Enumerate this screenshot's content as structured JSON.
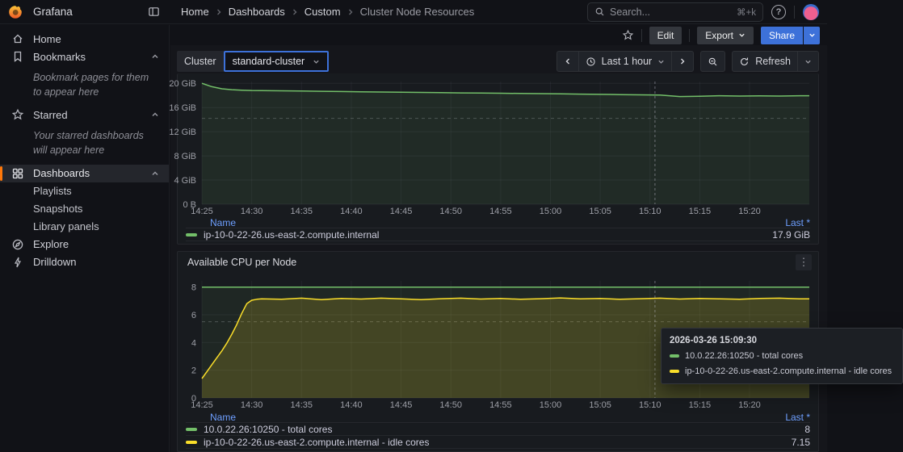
{
  "colors": {
    "accent_blue": "#3d71d9",
    "link_blue": "#6e9fff",
    "series_green": "#73bf69",
    "series_yellow": "#fade2a",
    "brand_orange": "#ff780a"
  },
  "icons": {
    "help_glyph": "?",
    "kebab_glyph": "⋮"
  },
  "topnav": {
    "brand": "Grafana",
    "breadcrumbs": [
      "Home",
      "Dashboards",
      "Custom",
      "Cluster Node Resources"
    ],
    "search": {
      "placeholder": "Search...",
      "shortcut": "⌘+k"
    }
  },
  "sidebar": {
    "items": [
      {
        "label": "Home"
      },
      {
        "label": "Bookmarks",
        "hint": "Bookmark pages for them to appear here"
      },
      {
        "label": "Starred",
        "hint": "Your starred dashboards will appear here"
      },
      {
        "label": "Dashboards",
        "children": [
          "Playlists",
          "Snapshots",
          "Library panels"
        ]
      },
      {
        "label": "Explore"
      },
      {
        "label": "Drilldown"
      }
    ]
  },
  "actions": {
    "edit": "Edit",
    "export": "Export",
    "share": "Share"
  },
  "controls": {
    "cluster_label": "Cluster",
    "cluster_value": "standard-cluster",
    "time_range": "Last 1 hour",
    "refresh": "Refresh"
  },
  "panels": [
    {
      "title": "",
      "legend": {
        "name_header": "Name",
        "value_header": "Last *",
        "rows": [
          {
            "name": "ip-10-0-22-26.us-east-2.compute.internal",
            "color": "#73bf69",
            "value": "17.9 GiB"
          }
        ]
      }
    },
    {
      "title": "Available CPU per Node",
      "legend": {
        "name_header": "Name",
        "value_header": "Last *",
        "rows": [
          {
            "name": "10.0.22.26:10250 - total cores",
            "color": "#73bf69",
            "value": "8"
          },
          {
            "name": "ip-10-0-22-26.us-east-2.compute.internal - idle cores",
            "color": "#fade2a",
            "value": "7.15"
          }
        ]
      }
    }
  ],
  "tooltip": {
    "timestamp": "2026-03-26 15:09:30",
    "series": [
      {
        "label": "10.0.22.26:10250 - total cores",
        "color": "#73bf69"
      },
      {
        "label": "ip-10-0-22-26.us-east-2.compute.internal - idle cores",
        "color": "#fade2a"
      }
    ]
  },
  "chart_data": [
    {
      "type": "line",
      "unit": "GiB",
      "x_ticks": [
        "14:25",
        "14:30",
        "14:35",
        "14:40",
        "14:45",
        "14:50",
        "14:55",
        "15:00",
        "15:05",
        "15:10",
        "15:15",
        "15:20"
      ],
      "x_tick_minutes": [
        0,
        5,
        10,
        15,
        20,
        25,
        30,
        35,
        40,
        45,
        50,
        55
      ],
      "x_max": 61,
      "ylim": [
        0,
        20.3
      ],
      "y_ticks": [
        "0 B",
        "4 GiB",
        "8 GiB",
        "12 GiB",
        "16 GiB",
        "20 GiB"
      ],
      "y_tick_values": [
        0,
        4,
        8,
        12,
        16,
        20
      ],
      "threshold": 14.2,
      "crosshair_minute": 45.5,
      "series": [
        {
          "name": "ip-10-0-22-26.us-east-2.compute.internal",
          "color": "#73bf69",
          "fill_opacity": 0.1,
          "last": "17.9 GiB",
          "x": [
            0,
            1,
            2,
            3,
            4,
            5,
            6,
            7,
            8,
            10,
            12,
            14,
            16,
            18,
            20,
            22,
            24,
            26,
            28,
            30,
            32,
            34,
            36,
            38,
            39,
            40,
            41,
            42,
            44,
            46,
            48,
            50,
            52,
            54,
            56,
            58,
            60,
            61
          ],
          "y": [
            20.0,
            19.45,
            19.1,
            18.95,
            18.87,
            18.82,
            18.8,
            18.78,
            18.76,
            18.72,
            18.68,
            18.64,
            18.6,
            18.56,
            18.52,
            18.5,
            18.46,
            18.42,
            18.4,
            18.36,
            18.32,
            18.3,
            18.26,
            18.22,
            18.2,
            18.18,
            18.16,
            18.14,
            18.1,
            18.05,
            17.82,
            17.85,
            17.95,
            17.9,
            17.92,
            17.9,
            17.95,
            17.95
          ]
        }
      ]
    },
    {
      "type": "line",
      "title": "Available CPU per Node",
      "unit": "cores",
      "x_ticks": [
        "14:25",
        "14:30",
        "14:35",
        "14:40",
        "14:45",
        "14:50",
        "14:55",
        "15:00",
        "15:05",
        "15:10",
        "15:15",
        "15:20"
      ],
      "x_tick_minutes": [
        0,
        5,
        10,
        15,
        20,
        25,
        30,
        35,
        40,
        45,
        50,
        55
      ],
      "x_max": 61,
      "ylim": [
        0,
        8.45
      ],
      "y_ticks": [
        "0",
        "2",
        "4",
        "6",
        "8"
      ],
      "y_tick_values": [
        0,
        2,
        4,
        6,
        8
      ],
      "threshold": 5.5,
      "crosshair_minute": 45.5,
      "series": [
        {
          "name": "10.0.22.26:10250 - total cores",
          "color": "#73bf69",
          "fill_opacity": 0.08,
          "last": "8",
          "x": [
            0,
            61
          ],
          "y": [
            8,
            8
          ]
        },
        {
          "name": "ip-10-0-22-26.us-east-2.compute.internal - idle cores",
          "color": "#fade2a",
          "fill_opacity": 0.17,
          "last": "7.15",
          "x": [
            0,
            0.5,
            1,
            1.5,
            2,
            2.5,
            3,
            3.5,
            4,
            4.5,
            5,
            5.5,
            6,
            8,
            10,
            12,
            14,
            16,
            18,
            20,
            22,
            24,
            26,
            28,
            30,
            32,
            34,
            36,
            38,
            40,
            42,
            44,
            46,
            48,
            50,
            52,
            54,
            56,
            58,
            60,
            61
          ],
          "y": [
            1.4,
            1.9,
            2.4,
            2.9,
            3.4,
            3.95,
            4.6,
            5.3,
            6.1,
            6.8,
            7.05,
            7.12,
            7.15,
            7.12,
            7.2,
            7.1,
            7.18,
            7.14,
            7.2,
            7.15,
            7.1,
            7.16,
            7.2,
            7.14,
            7.18,
            7.12,
            7.16,
            7.22,
            7.15,
            7.18,
            7.12,
            7.16,
            7.2,
            7.14,
            7.18,
            7.15,
            7.12,
            7.18,
            7.2,
            7.15,
            7.15
          ]
        }
      ]
    }
  ]
}
